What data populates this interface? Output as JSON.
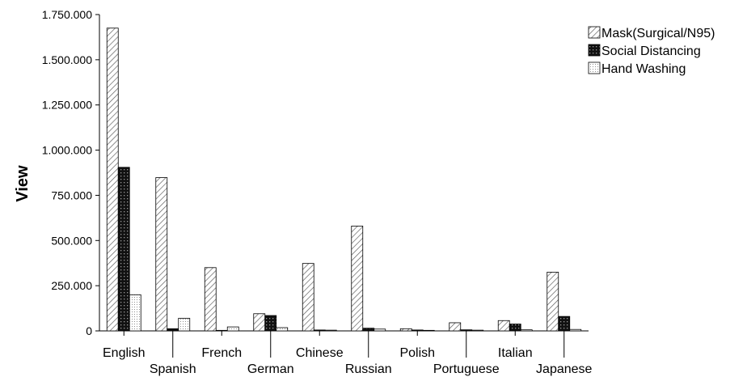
{
  "chart_data": {
    "type": "bar",
    "ylabel": "View",
    "xlabel": "",
    "ylim": [
      0,
      1750000
    ],
    "y_tick_values": [
      0,
      250000,
      500000,
      750000,
      1000000,
      1250000,
      1500000,
      1750000
    ],
    "y_tick_labels": [
      "0",
      "250.000",
      "500.000",
      "750.000",
      "1.000.000",
      "1.250.000",
      "1.500.000",
      "1.750.000"
    ],
    "categories": [
      "English",
      "Spanish",
      "French",
      "German",
      "Chinese",
      "Russian",
      "Polish",
      "Portuguese",
      "Italian",
      "Japanese"
    ],
    "legend_position": "top-right",
    "grid": false,
    "series": [
      {
        "name": "Mask(Surgical/N95)",
        "pattern": "diagonal-hatch",
        "values": [
          1675000,
          848000,
          350000,
          95000,
          373000,
          580000,
          12000,
          45000,
          57000,
          325000
        ]
      },
      {
        "name": "Social Distancing",
        "pattern": "dark-crosshatch",
        "values": [
          905000,
          12000,
          3000,
          85000,
          5000,
          15000,
          5000,
          6000,
          38000,
          80000
        ]
      },
      {
        "name": "Hand Washing",
        "pattern": "dotted",
        "values": [
          200000,
          70000,
          22000,
          18000,
          4000,
          10000,
          3000,
          4000,
          6000,
          8000
        ]
      }
    ]
  }
}
